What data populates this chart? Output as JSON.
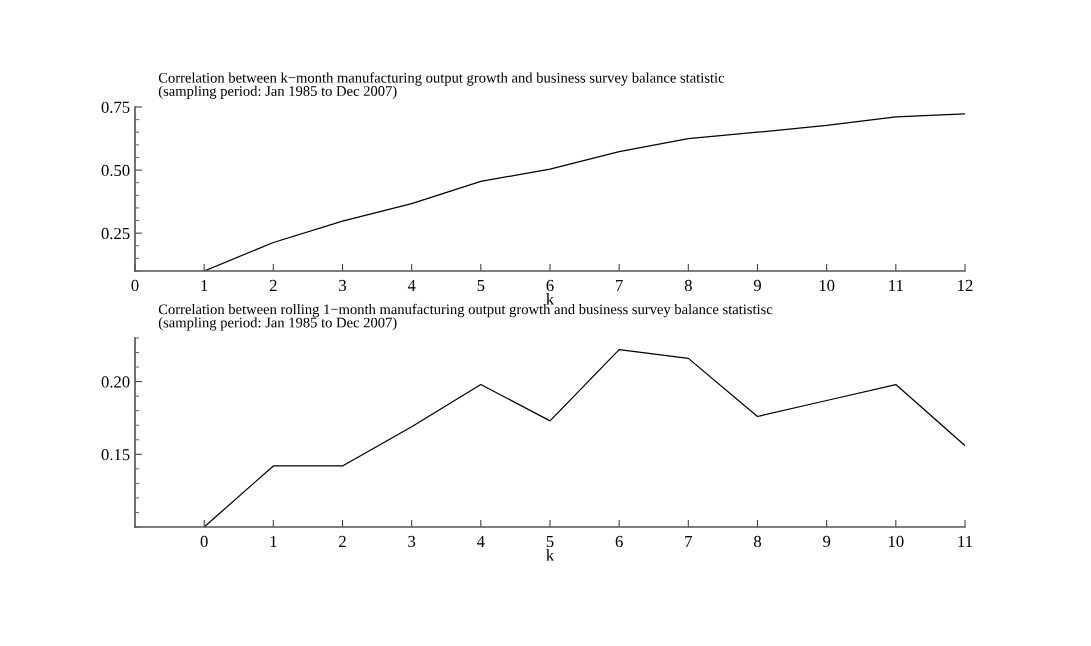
{
  "chart_data": [
    {
      "type": "line",
      "title": "Correlation between k−month manufacturing output growth and business survey balance statistic",
      "subtitle": "(sampling period: Jan 1985 to Dec 2007)",
      "xlabel": "k",
      "color": "#000000",
      "x": [
        1,
        2,
        3,
        4,
        5,
        6,
        7,
        8,
        9,
        10,
        11,
        12
      ],
      "values": [
        0.1,
        0.213,
        0.298,
        0.367,
        0.455,
        0.504,
        0.573,
        0.625,
        0.65,
        0.677,
        0.711,
        0.723
      ],
      "xlim": [
        0,
        12
      ],
      "xticks": [
        0,
        1,
        2,
        3,
        4,
        5,
        6,
        7,
        8,
        9,
        10,
        11,
        12
      ],
      "ylim": [
        0.1,
        0.75
      ],
      "yticks": [
        0.25,
        {
          "value": 0.5,
          "label": "0.50"
        },
        0.75
      ],
      "grid": false,
      "legend": false
    },
    {
      "type": "line",
      "title": "Correlation between rolling 1−month manufacturing output growth and business survey balance statistisc",
      "subtitle": "(sampling period: Jan 1985 to Dec 2007)",
      "xlabel": "k",
      "color": "#000000",
      "x": [
        0,
        1,
        2,
        3,
        4,
        5,
        6,
        7,
        8,
        9,
        10,
        11
      ],
      "values": [
        0.1,
        0.142,
        0.142,
        0.169,
        0.198,
        0.173,
        0.222,
        0.216,
        0.176,
        0.187,
        0.198,
        0.156
      ],
      "xlim": [
        -1,
        11
      ],
      "xticks": [
        0,
        1,
        2,
        3,
        4,
        5,
        6,
        7,
        8,
        9,
        10,
        11
      ],
      "ylim": [
        0.1,
        0.23
      ],
      "yticks": [
        0.15,
        {
          "value": 0.2,
          "label": "0.20"
        }
      ],
      "grid": false,
      "legend": false
    }
  ]
}
